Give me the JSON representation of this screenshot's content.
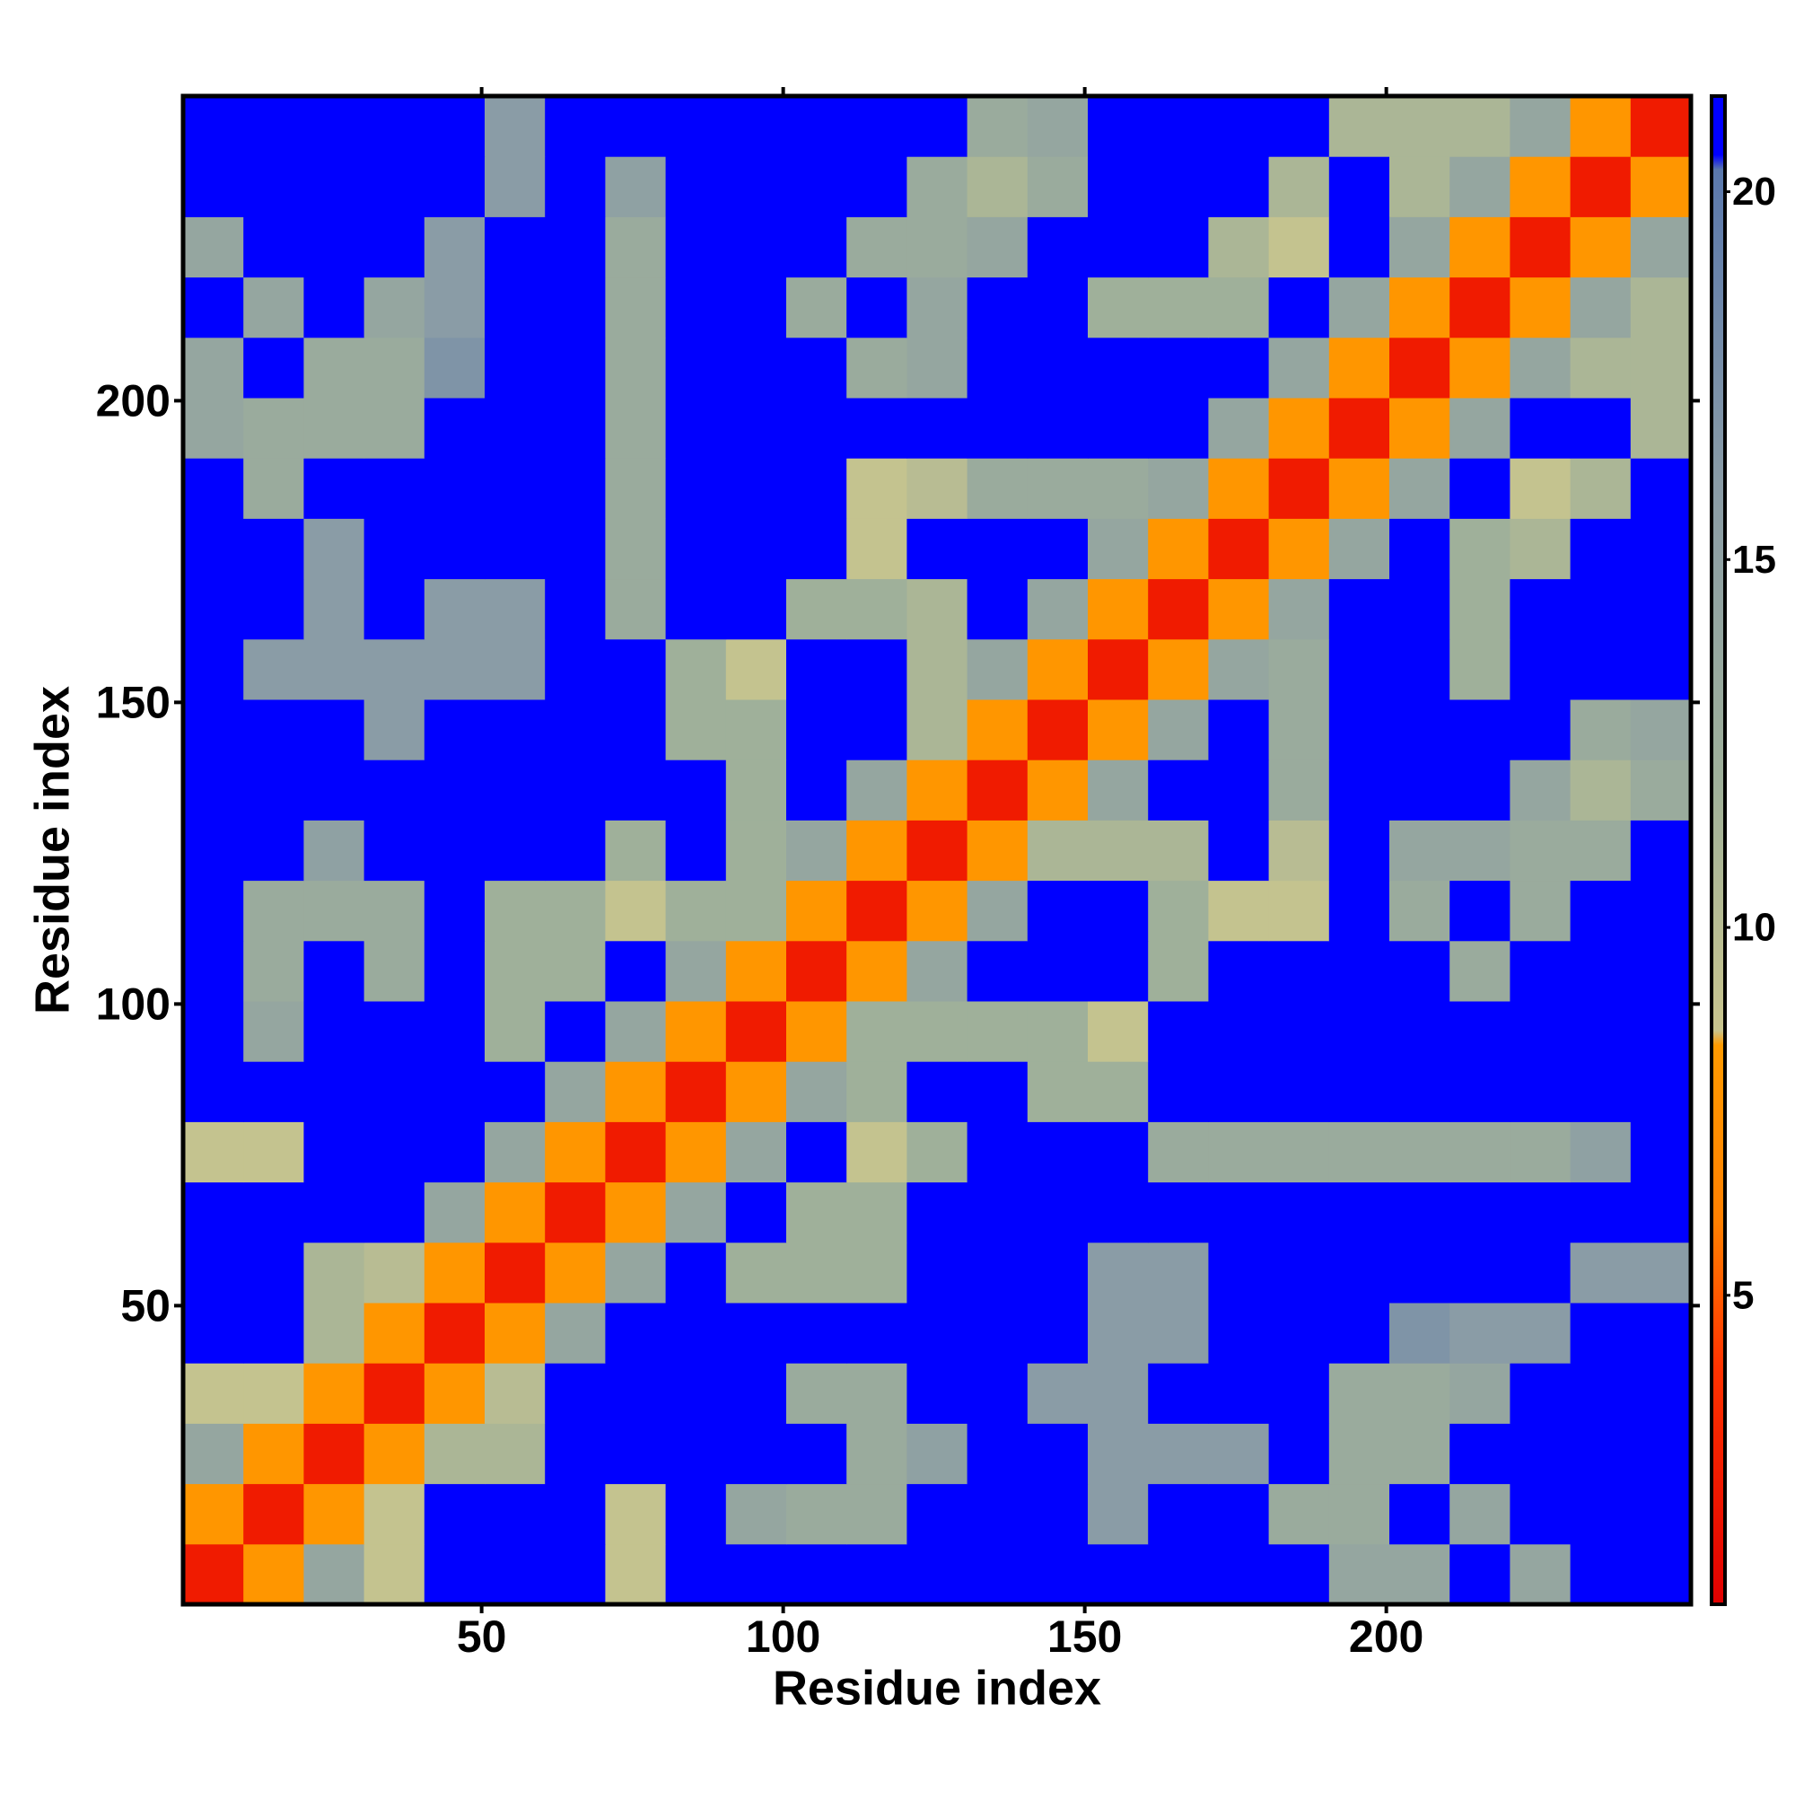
{
  "chart_data": {
    "type": "heatmap",
    "x_label": "Residue index",
    "y_label": "Residue index",
    "x": [
      5.5,
      15.5,
      25.5,
      35.5,
      45.5,
      55.5,
      65.5,
      75.5,
      85.5,
      95.5,
      105.5,
      115.5,
      125.5,
      135.5,
      145.5,
      155.5,
      165.5,
      175.5,
      185.5,
      195.5,
      205.5,
      215.5,
      225.5,
      235.5,
      245.5
    ],
    "y": [
      5.5,
      15.5,
      25.5,
      35.5,
      45.5,
      55.5,
      65.5,
      75.5,
      85.5,
      95.5,
      105.5,
      115.5,
      125.5,
      135.5,
      145.5,
      155.5,
      165.5,
      175.5,
      185.5,
      195.5,
      205.5,
      215.5,
      225.5,
      235.5,
      245.5
    ],
    "z": [
      [
        2.5,
        8,
        14,
        9,
        21,
        21,
        21,
        9,
        21,
        21,
        21,
        21,
        21,
        21,
        21,
        21,
        21,
        21,
        21,
        14,
        14,
        21,
        14,
        21,
        21
      ],
      [
        8,
        2.5,
        8,
        9,
        21,
        21,
        21,
        9,
        21,
        14,
        13,
        13,
        21,
        21,
        21,
        16,
        21,
        21,
        13,
        13,
        21,
        14,
        21,
        21,
        21
      ],
      [
        14,
        8,
        2.5,
        8,
        11,
        11,
        21,
        21,
        21,
        21,
        21,
        13,
        15,
        21,
        21,
        16,
        16,
        16,
        21,
        13,
        13,
        21,
        21,
        21,
        21
      ],
      [
        9,
        9,
        8,
        2.5,
        8,
        10,
        21,
        21,
        21,
        21,
        13,
        13,
        21,
        21,
        16,
        16,
        21,
        21,
        21,
        13,
        13,
        14,
        21,
        21,
        21
      ],
      [
        21,
        21,
        11,
        8,
        2.5,
        8,
        14,
        21,
        21,
        21,
        21,
        21,
        21,
        21,
        21,
        16,
        16,
        21,
        21,
        21,
        17,
        16,
        16,
        21,
        21
      ],
      [
        21,
        21,
        11,
        10,
        8,
        2.5,
        8,
        14,
        21,
        12,
        12,
        12,
        21,
        21,
        21,
        16,
        16,
        21,
        21,
        21,
        21,
        21,
        21,
        16,
        16
      ],
      [
        21,
        21,
        21,
        21,
        14,
        8,
        2.5,
        8,
        14,
        21,
        12,
        12,
        21,
        21,
        21,
        21,
        21,
        21,
        21,
        21,
        21,
        21,
        21,
        21,
        21
      ],
      [
        9,
        9,
        21,
        21,
        21,
        14,
        8,
        2.5,
        8,
        14,
        21,
        9,
        12,
        21,
        21,
        21,
        13,
        13,
        13,
        13,
        13,
        13,
        13,
        15,
        21
      ],
      [
        21,
        21,
        21,
        21,
        21,
        21,
        14,
        8,
        2.5,
        8,
        14,
        12,
        21,
        21,
        12,
        12,
        21,
        21,
        21,
        21,
        21,
        21,
        21,
        21,
        21
      ],
      [
        21,
        14,
        21,
        21,
        21,
        12,
        21,
        14,
        8,
        2.5,
        8,
        12,
        12,
        12,
        12,
        9,
        21,
        21,
        21,
        21,
        21,
        21,
        21,
        21,
        21
      ],
      [
        21,
        13,
        21,
        13,
        21,
        12,
        12,
        21,
        14,
        8,
        2.5,
        8,
        14,
        21,
        21,
        21,
        12,
        21,
        21,
        21,
        21,
        13,
        21,
        21,
        21
      ],
      [
        21,
        13,
        13,
        13,
        21,
        12,
        12,
        9,
        12,
        12,
        8,
        2.5,
        8,
        14,
        21,
        21,
        12,
        9,
        9,
        21,
        13,
        21,
        13,
        21,
        21
      ],
      [
        21,
        21,
        15,
        21,
        21,
        21,
        21,
        12,
        21,
        12,
        14,
        8,
        2.5,
        8,
        11,
        11,
        11,
        21,
        10,
        21,
        14,
        14,
        13,
        13,
        21
      ],
      [
        21,
        21,
        21,
        21,
        21,
        21,
        21,
        21,
        21,
        12,
        21,
        14,
        8,
        2.5,
        8,
        14,
        21,
        21,
        13,
        21,
        21,
        21,
        14,
        11,
        13
      ],
      [
        21,
        21,
        21,
        16,
        21,
        21,
        21,
        21,
        12,
        12,
        21,
        21,
        11,
        8,
        2.5,
        8,
        14,
        21,
        13,
        21,
        21,
        21,
        21,
        13,
        14
      ],
      [
        21,
        16,
        16,
        16,
        16,
        16,
        21,
        21,
        12,
        9,
        21,
        21,
        11,
        14,
        8,
        2.5,
        8,
        14,
        13,
        21,
        21,
        12,
        21,
        21,
        21
      ],
      [
        21,
        21,
        16,
        21,
        16,
        16,
        21,
        13,
        21,
        21,
        12,
        12,
        11,
        21,
        14,
        8,
        2.5,
        8,
        14,
        21,
        21,
        12,
        21,
        21,
        21
      ],
      [
        21,
        21,
        16,
        21,
        21,
        21,
        21,
        13,
        21,
        21,
        21,
        9,
        21,
        21,
        21,
        14,
        8,
        2.5,
        8,
        14,
        21,
        12,
        11,
        21,
        21
      ],
      [
        21,
        13,
        21,
        21,
        21,
        21,
        21,
        13,
        21,
        21,
        21,
        9,
        10,
        13,
        13,
        13,
        14,
        8,
        2.5,
        8,
        14,
        21,
        9,
        11,
        21
      ],
      [
        14,
        13,
        13,
        13,
        21,
        21,
        21,
        13,
        21,
        21,
        21,
        21,
        21,
        21,
        21,
        21,
        21,
        14,
        8,
        2.5,
        8,
        14,
        21,
        21,
        11
      ],
      [
        14,
        21,
        13,
        13,
        17,
        21,
        21,
        13,
        21,
        21,
        21,
        13,
        14,
        21,
        21,
        21,
        21,
        21,
        14,
        8,
        2.5,
        8,
        14,
        11,
        11
      ],
      [
        21,
        14,
        21,
        14,
        16,
        21,
        21,
        13,
        21,
        21,
        13,
        21,
        14,
        21,
        21,
        12,
        12,
        12,
        21,
        14,
        8,
        2.5,
        8,
        14,
        11
      ],
      [
        14,
        21,
        21,
        21,
        16,
        21,
        21,
        13,
        21,
        21,
        21,
        13,
        13,
        14,
        21,
        21,
        21,
        11,
        9,
        21,
        14,
        8,
        2.5,
        8,
        14
      ],
      [
        21,
        21,
        21,
        21,
        21,
        16,
        21,
        15,
        21,
        21,
        21,
        21,
        13,
        11,
        13,
        21,
        21,
        21,
        11,
        21,
        11,
        14,
        8,
        2.5,
        8
      ],
      [
        21,
        21,
        21,
        21,
        21,
        16,
        21,
        21,
        21,
        21,
        21,
        21,
        21,
        13,
        14,
        21,
        21,
        21,
        21,
        11,
        11,
        11,
        14,
        8,
        2.5
      ]
    ],
    "xlim": [
      0.5,
      250.5
    ],
    "ylim": [
      0.5,
      250.5
    ],
    "xticks": [
      50,
      100,
      150,
      200
    ],
    "yticks": [
      50,
      100,
      150,
      200
    ],
    "colorbar_lim": [
      0.8,
      21.3
    ],
    "colorbar_ticks": [
      5,
      10,
      15,
      20
    ],
    "colorscale": [
      [
        0.8,
        "#e00000"
      ],
      [
        4,
        "#ff3300"
      ],
      [
        6,
        "#ff8000"
      ],
      [
        8.4,
        "#ff9a00"
      ],
      [
        8.6,
        "#c9c58e"
      ],
      [
        12,
        "#9fb09a"
      ],
      [
        16,
        "#8a9ca6"
      ],
      [
        20.3,
        "#5a78ac"
      ],
      [
        20.5,
        "#0000ff"
      ],
      [
        21.3,
        "#0000ff"
      ]
    ]
  }
}
